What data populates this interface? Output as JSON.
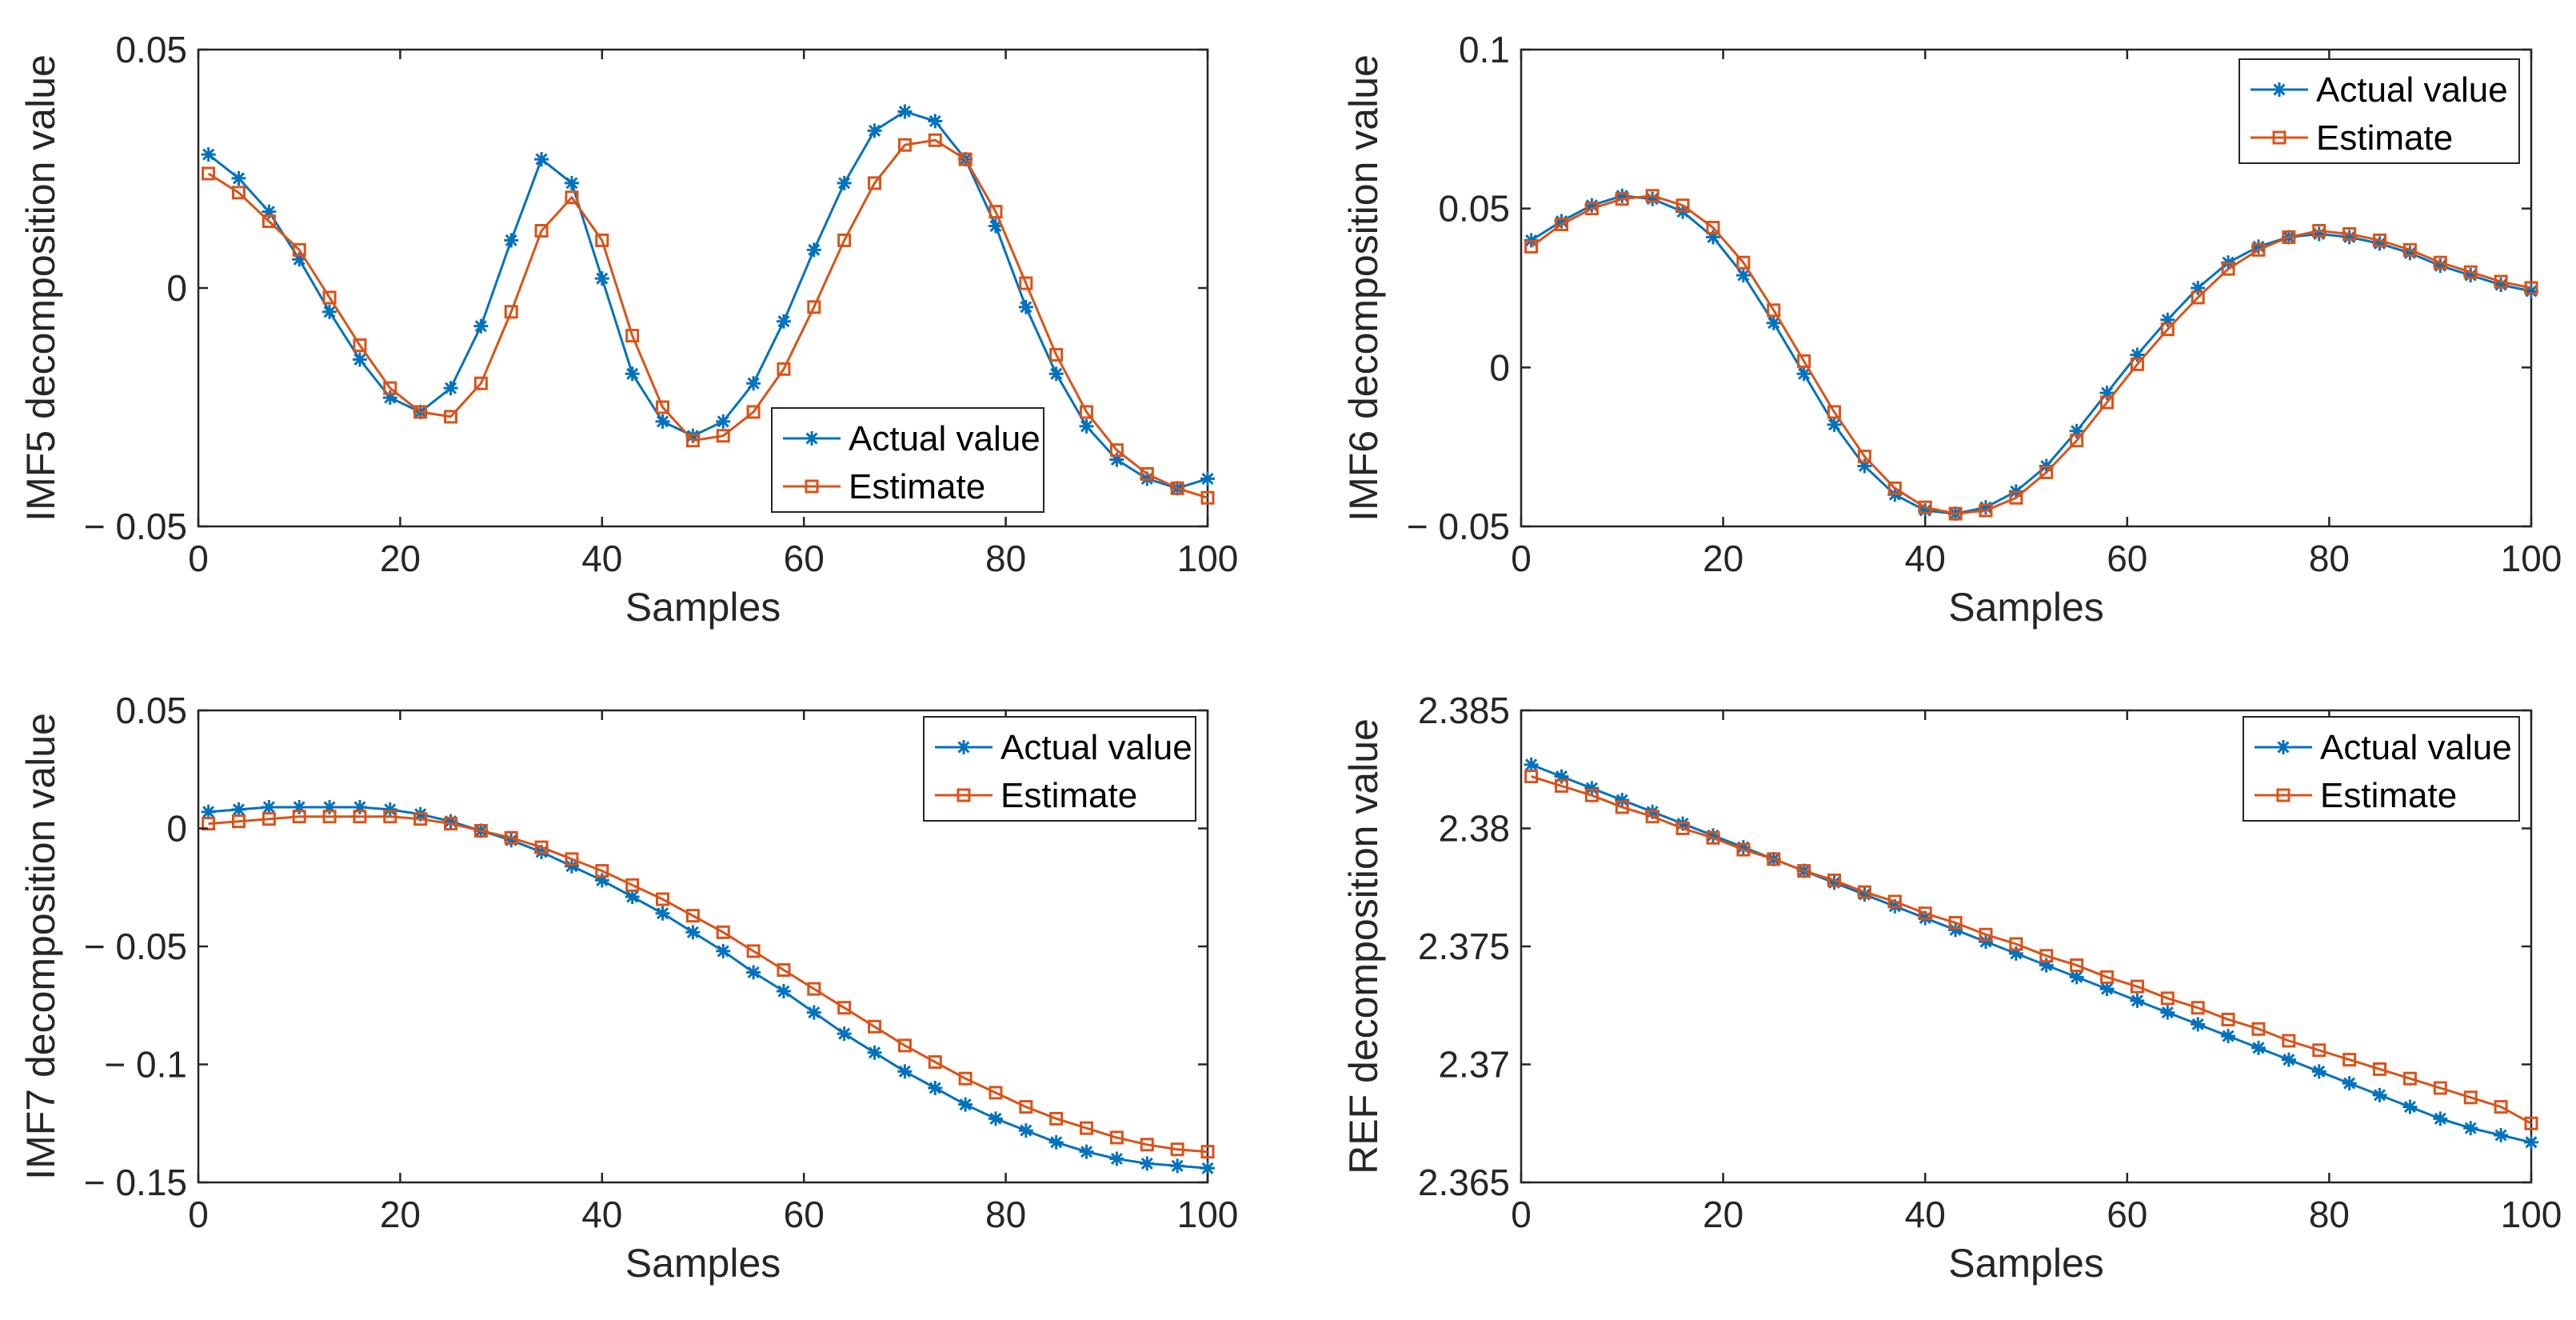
{
  "figure": {
    "background": "#ffffff",
    "axis_color": "#262626"
  },
  "chart_data": [
    {
      "type": "line",
      "title": "",
      "xlabel": "Samples",
      "ylabel": "IMF5 decomposition value",
      "xlim": [
        0,
        100
      ],
      "ylim": [
        -0.05,
        0.05
      ],
      "x_ticks": [
        0,
        20,
        40,
        60,
        80,
        100
      ],
      "x_tick_labels": [
        "0",
        "20",
        "40",
        "60",
        "80",
        "100"
      ],
      "y_ticks": [
        -0.05,
        0,
        0.05
      ],
      "y_tick_labels": [
        "− 0.05",
        "0",
        "0.05"
      ],
      "grid": false,
      "legend_position": "lower-center",
      "x": [
        1,
        4,
        7,
        10,
        13,
        16,
        19,
        22,
        25,
        28,
        31,
        34,
        37,
        40,
        43,
        46,
        49,
        52,
        55,
        58,
        61,
        64,
        67,
        70,
        73,
        76,
        79,
        82,
        85,
        88,
        91,
        94,
        97,
        100
      ],
      "series": [
        {
          "name": "Actual value",
          "color": "#0072bd",
          "marker": "star",
          "values": [
            0.028,
            0.023,
            0.016,
            0.006,
            -0.005,
            -0.015,
            -0.023,
            -0.026,
            -0.021,
            -0.008,
            0.01,
            0.027,
            0.022,
            0.002,
            -0.018,
            -0.028,
            -0.031,
            -0.028,
            -0.02,
            -0.007,
            0.008,
            0.022,
            0.033,
            0.037,
            0.035,
            0.027,
            0.013,
            -0.004,
            -0.018,
            -0.029,
            -0.036,
            -0.04,
            -0.042,
            -0.04
          ]
        },
        {
          "name": "Estimate",
          "color": "#d95319",
          "marker": "square",
          "values": [
            0.024,
            0.02,
            0.014,
            0.008,
            -0.002,
            -0.012,
            -0.021,
            -0.026,
            -0.027,
            -0.02,
            -0.005,
            0.012,
            0.019,
            0.01,
            -0.01,
            -0.025,
            -0.032,
            -0.031,
            -0.026,
            -0.017,
            -0.004,
            0.01,
            0.022,
            0.03,
            0.031,
            0.027,
            0.016,
            0.001,
            -0.014,
            -0.026,
            -0.034,
            -0.039,
            -0.042,
            -0.044
          ]
        }
      ]
    },
    {
      "type": "line",
      "title": "",
      "xlabel": "Samples",
      "ylabel": "IMF6 decomposition value",
      "xlim": [
        0,
        100
      ],
      "ylim": [
        -0.05,
        0.1
      ],
      "x_ticks": [
        0,
        20,
        40,
        60,
        80,
        100
      ],
      "x_tick_labels": [
        "0",
        "20",
        "40",
        "60",
        "80",
        "100"
      ],
      "y_ticks": [
        -0.05,
        0,
        0.05,
        0.1
      ],
      "y_tick_labels": [
        "− 0.05",
        "0",
        "0.05",
        "0.1"
      ],
      "grid": false,
      "legend_position": "top-right",
      "x": [
        1,
        4,
        7,
        10,
        13,
        16,
        19,
        22,
        25,
        28,
        31,
        34,
        37,
        40,
        43,
        46,
        49,
        52,
        55,
        58,
        61,
        64,
        67,
        70,
        73,
        76,
        79,
        82,
        85,
        88,
        91,
        94,
        97,
        100
      ],
      "series": [
        {
          "name": "Actual value",
          "color": "#0072bd",
          "marker": "star",
          "values": [
            0.04,
            0.046,
            0.051,
            0.054,
            0.053,
            0.049,
            0.041,
            0.029,
            0.014,
            -0.002,
            -0.018,
            -0.031,
            -0.04,
            -0.045,
            -0.046,
            -0.044,
            -0.039,
            -0.031,
            -0.02,
            -0.008,
            0.004,
            0.015,
            0.025,
            0.033,
            0.038,
            0.041,
            0.042,
            0.041,
            0.039,
            0.036,
            0.032,
            0.029,
            0.026,
            0.024
          ]
        },
        {
          "name": "Estimate",
          "color": "#d95319",
          "marker": "square",
          "values": [
            0.038,
            0.045,
            0.05,
            0.053,
            0.054,
            0.051,
            0.044,
            0.033,
            0.018,
            0.002,
            -0.014,
            -0.028,
            -0.038,
            -0.044,
            -0.046,
            -0.045,
            -0.041,
            -0.033,
            -0.023,
            -0.011,
            0.001,
            0.012,
            0.022,
            0.031,
            0.037,
            0.041,
            0.043,
            0.042,
            0.04,
            0.037,
            0.033,
            0.03,
            0.027,
            0.025
          ]
        }
      ]
    },
    {
      "type": "line",
      "title": "",
      "xlabel": "Samples",
      "ylabel": "IMF7 decomposition value",
      "xlim": [
        0,
        100
      ],
      "ylim": [
        -0.15,
        0.05
      ],
      "x_ticks": [
        0,
        20,
        40,
        60,
        80,
        100
      ],
      "x_tick_labels": [
        "0",
        "20",
        "40",
        "60",
        "80",
        "100"
      ],
      "y_ticks": [
        -0.15,
        -0.1,
        -0.05,
        0,
        0.05
      ],
      "y_tick_labels": [
        "− 0.15",
        "− 0.1",
        "− 0.05",
        "0",
        "0.05"
      ],
      "grid": false,
      "legend_position": "top-right",
      "x": [
        1,
        4,
        7,
        10,
        13,
        16,
        19,
        22,
        25,
        28,
        31,
        34,
        37,
        40,
        43,
        46,
        49,
        52,
        55,
        58,
        61,
        64,
        67,
        70,
        73,
        76,
        79,
        82,
        85,
        88,
        91,
        94,
        97,
        100
      ],
      "series": [
        {
          "name": "Actual value",
          "color": "#0072bd",
          "marker": "star",
          "values": [
            0.007,
            0.008,
            0.009,
            0.009,
            0.009,
            0.009,
            0.008,
            0.006,
            0.003,
            -0.001,
            -0.005,
            -0.01,
            -0.016,
            -0.022,
            -0.029,
            -0.036,
            -0.044,
            -0.052,
            -0.061,
            -0.069,
            -0.078,
            -0.087,
            -0.095,
            -0.103,
            -0.11,
            -0.117,
            -0.123,
            -0.128,
            -0.133,
            -0.137,
            -0.14,
            -0.142,
            -0.143,
            -0.144
          ]
        },
        {
          "name": "Estimate",
          "color": "#d95319",
          "marker": "square",
          "values": [
            0.002,
            0.003,
            0.004,
            0.005,
            0.005,
            0.005,
            0.005,
            0.004,
            0.002,
            -0.001,
            -0.004,
            -0.008,
            -0.013,
            -0.018,
            -0.024,
            -0.03,
            -0.037,
            -0.044,
            -0.052,
            -0.06,
            -0.068,
            -0.076,
            -0.084,
            -0.092,
            -0.099,
            -0.106,
            -0.112,
            -0.118,
            -0.123,
            -0.127,
            -0.131,
            -0.134,
            -0.136,
            -0.137
          ]
        }
      ]
    },
    {
      "type": "line",
      "title": "",
      "xlabel": "Samples",
      "ylabel": "REF decomposition value",
      "xlim": [
        0,
        100
      ],
      "ylim": [
        2.365,
        2.385
      ],
      "x_ticks": [
        0,
        20,
        40,
        60,
        80,
        100
      ],
      "x_tick_labels": [
        "0",
        "20",
        "40",
        "60",
        "80",
        "100"
      ],
      "y_ticks": [
        2.365,
        2.37,
        2.375,
        2.38,
        2.385
      ],
      "y_tick_labels": [
        "2.365",
        "2.37",
        "2.375",
        "2.38",
        "2.385"
      ],
      "grid": false,
      "legend_position": "top-right",
      "x": [
        1,
        4,
        7,
        10,
        13,
        16,
        19,
        22,
        25,
        28,
        31,
        34,
        37,
        40,
        43,
        46,
        49,
        52,
        55,
        58,
        61,
        64,
        67,
        70,
        73,
        76,
        79,
        82,
        85,
        88,
        91,
        94,
        97,
        100
      ],
      "series": [
        {
          "name": "Actual value",
          "color": "#0072bd",
          "marker": "star",
          "values": [
            2.3827,
            2.3822,
            2.3817,
            2.3812,
            2.3807,
            2.3802,
            2.3797,
            2.3792,
            2.3787,
            2.3782,
            2.3777,
            2.3772,
            2.3767,
            2.3762,
            2.3757,
            2.3752,
            2.3747,
            2.3742,
            2.3737,
            2.3732,
            2.3727,
            2.3722,
            2.3717,
            2.3712,
            2.3707,
            2.3702,
            2.3697,
            2.3692,
            2.3687,
            2.3682,
            2.3677,
            2.3673,
            2.367,
            2.3667
          ]
        },
        {
          "name": "Estimate",
          "color": "#d95319",
          "marker": "square",
          "values": [
            2.3822,
            2.3818,
            2.3814,
            2.3809,
            2.3805,
            2.38,
            2.3796,
            2.3791,
            2.3787,
            2.3782,
            2.3778,
            2.3773,
            2.3769,
            2.3764,
            2.376,
            2.3755,
            2.3751,
            2.3746,
            2.3742,
            2.3737,
            2.3733,
            2.3728,
            2.3724,
            2.3719,
            2.3715,
            2.371,
            2.3706,
            2.3702,
            2.3698,
            2.3694,
            2.369,
            2.3686,
            2.3682,
            2.3675
          ]
        }
      ]
    }
  ]
}
